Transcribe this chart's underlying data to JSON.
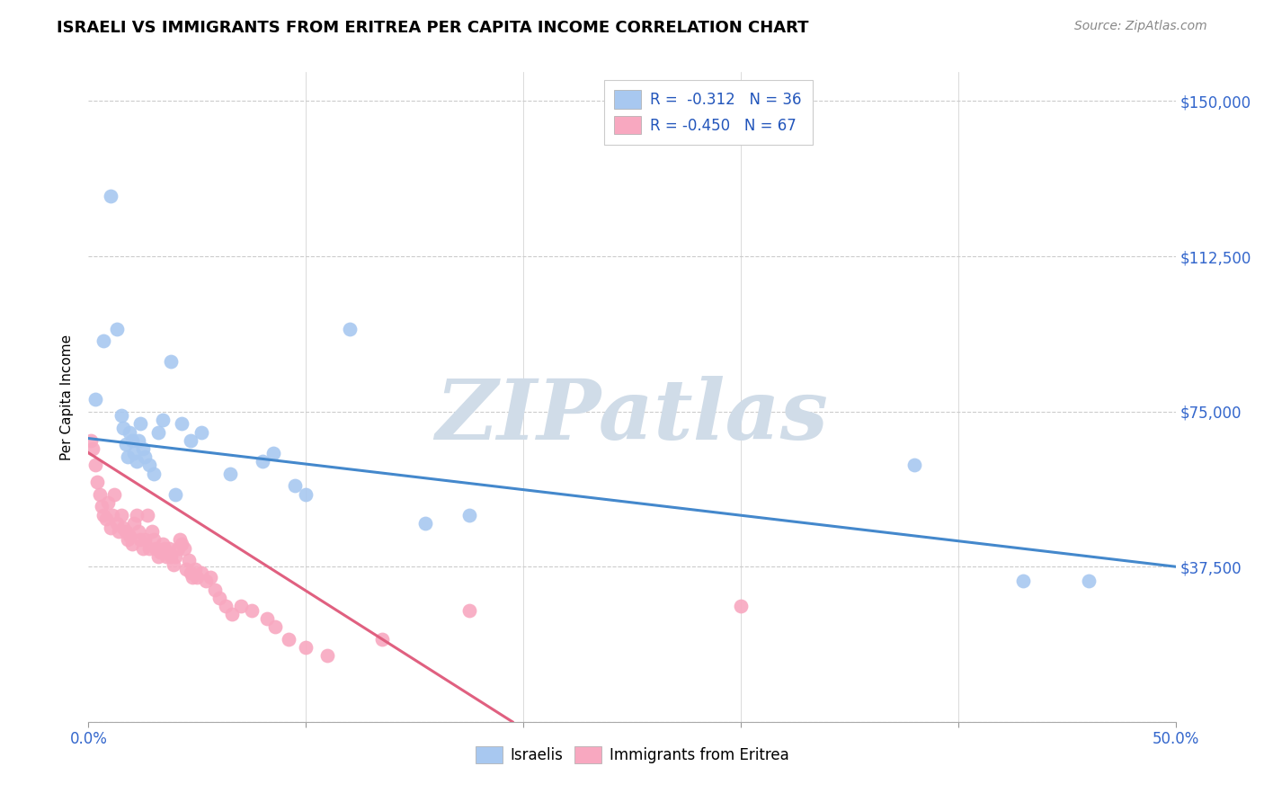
{
  "title": "ISRAELI VS IMMIGRANTS FROM ERITREA PER CAPITA INCOME CORRELATION CHART",
  "source": "Source: ZipAtlas.com",
  "ylabel": "Per Capita Income",
  "yticks": [
    0,
    37500,
    75000,
    112500,
    150000
  ],
  "ytick_labels": [
    "",
    "$37,500",
    "$75,000",
    "$112,500",
    "$150,000"
  ],
  "xlim": [
    0.0,
    0.5
  ],
  "ylim": [
    0,
    157000
  ],
  "legend_isr_r": "-0.312",
  "legend_isr_n": "36",
  "legend_eri_r": "-0.450",
  "legend_eri_n": "67",
  "israeli_color": "#a8c8f0",
  "eritrea_color": "#f8a8c0",
  "israeli_line_color": "#4488cc",
  "eritrea_line_color": "#e06080",
  "watermark": "ZIPatlas",
  "watermark_color": "#d0dce8",
  "isr_line_x0": 0.0,
  "isr_line_x1": 0.5,
  "isr_line_y0": 68500,
  "isr_line_y1": 37500,
  "eri_line_x0": 0.0,
  "eri_line_x1": 0.195,
  "eri_line_y0": 65000,
  "eri_line_y1": 0,
  "israelis_scatter_x": [
    0.003,
    0.007,
    0.01,
    0.013,
    0.015,
    0.016,
    0.017,
    0.018,
    0.019,
    0.02,
    0.021,
    0.022,
    0.023,
    0.024,
    0.025,
    0.026,
    0.028,
    0.03,
    0.032,
    0.034,
    0.038,
    0.04,
    0.043,
    0.047,
    0.052,
    0.065,
    0.08,
    0.085,
    0.095,
    0.1,
    0.12,
    0.155,
    0.175,
    0.38,
    0.43,
    0.46
  ],
  "israelis_scatter_y": [
    78000,
    92000,
    127000,
    95000,
    74000,
    71000,
    67000,
    64000,
    70000,
    68000,
    65000,
    63000,
    68000,
    72000,
    66000,
    64000,
    62000,
    60000,
    70000,
    73000,
    87000,
    55000,
    72000,
    68000,
    70000,
    60000,
    63000,
    65000,
    57000,
    55000,
    95000,
    48000,
    50000,
    62000,
    34000,
    34000
  ],
  "eritrea_scatter_x": [
    0.001,
    0.002,
    0.003,
    0.004,
    0.005,
    0.006,
    0.007,
    0.008,
    0.009,
    0.01,
    0.011,
    0.012,
    0.013,
    0.014,
    0.015,
    0.016,
    0.017,
    0.018,
    0.019,
    0.02,
    0.021,
    0.022,
    0.023,
    0.024,
    0.025,
    0.026,
    0.027,
    0.028,
    0.029,
    0.03,
    0.031,
    0.032,
    0.033,
    0.034,
    0.035,
    0.036,
    0.037,
    0.038,
    0.039,
    0.04,
    0.041,
    0.042,
    0.043,
    0.044,
    0.045,
    0.046,
    0.047,
    0.048,
    0.049,
    0.05,
    0.052,
    0.054,
    0.056,
    0.058,
    0.06,
    0.063,
    0.066,
    0.07,
    0.075,
    0.082,
    0.086,
    0.092,
    0.1,
    0.11,
    0.135,
    0.175,
    0.3
  ],
  "eritrea_scatter_y": [
    68000,
    66000,
    62000,
    58000,
    55000,
    52000,
    50000,
    49000,
    53000,
    47000,
    50000,
    55000,
    48000,
    46000,
    50000,
    47000,
    46000,
    44000,
    45000,
    43000,
    48000,
    50000,
    46000,
    44000,
    42000,
    44000,
    50000,
    42000,
    46000,
    44000,
    42000,
    40000,
    41000,
    43000,
    42000,
    40000,
    42000,
    40000,
    38000,
    40000,
    42000,
    44000,
    43000,
    42000,
    37000,
    39000,
    36000,
    35000,
    37000,
    35000,
    36000,
    34000,
    35000,
    32000,
    30000,
    28000,
    26000,
    28000,
    27000,
    25000,
    23000,
    20000,
    18000,
    16000,
    20000,
    27000,
    28000
  ]
}
